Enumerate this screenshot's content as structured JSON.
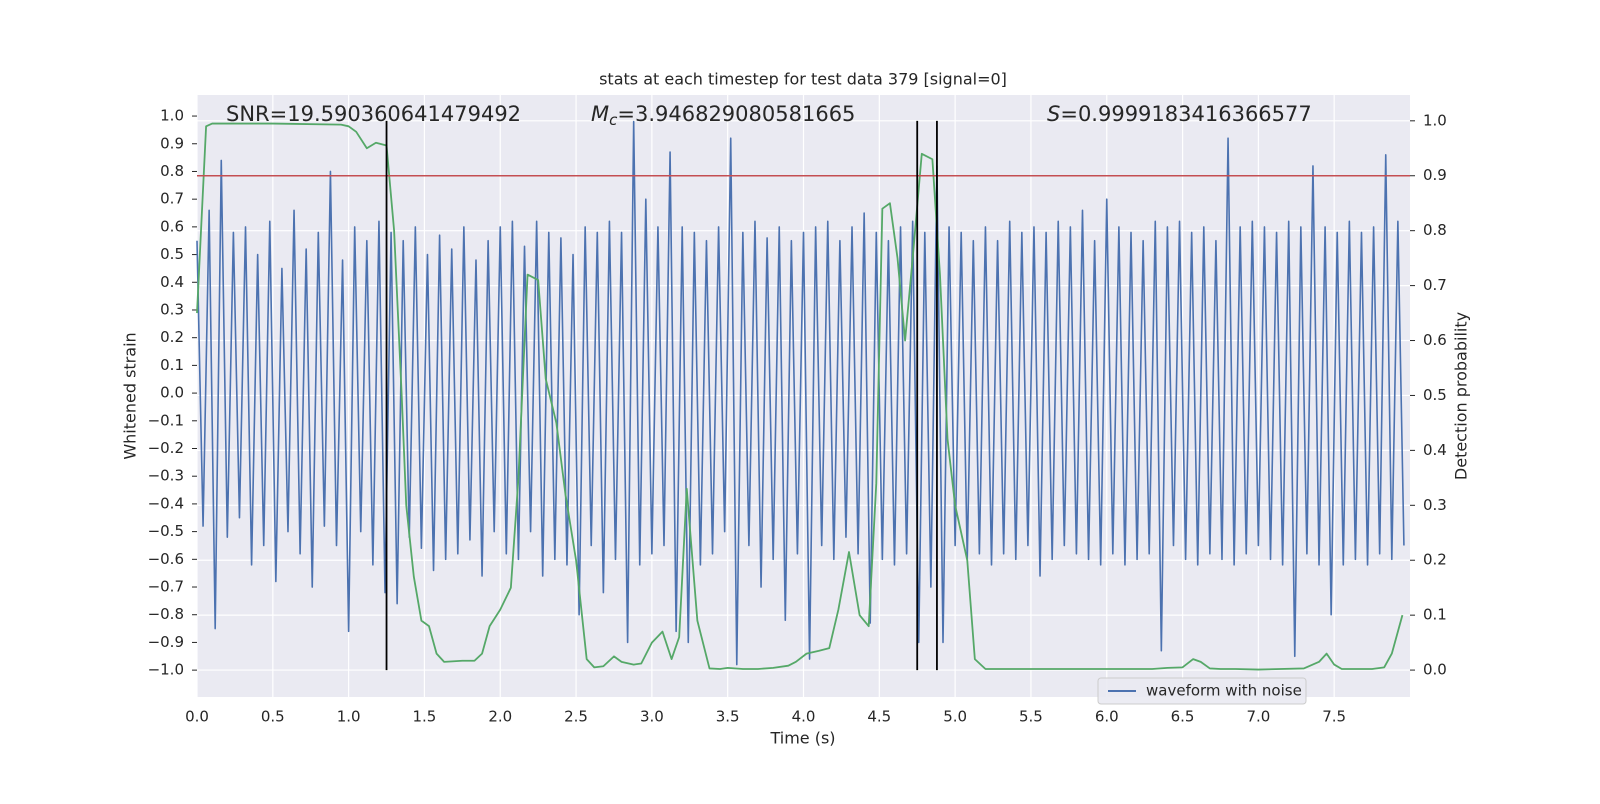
{
  "chart_data": {
    "type": "line",
    "title": "stats at each timestep for test data 379 [signal=0]",
    "xlabel": "Time (s)",
    "ylabel": "Whitened strain",
    "y2label": "Detection probability",
    "annotations": [
      {
        "text": "SNR=19.590360641479492"
      },
      {
        "symbol": "M",
        "subscript": "c",
        "text": "=3.946829080581665"
      },
      {
        "symbol": "S",
        "text": "=0.9999183416366577"
      }
    ],
    "xlim": [
      0,
      8
    ],
    "xticks": [
      {
        "value": 0,
        "label": "0.0"
      },
      0.5,
      {
        "value": 1,
        "label": "1.0"
      },
      1.5,
      {
        "value": 2,
        "label": "2.0"
      },
      2.5,
      {
        "value": 3,
        "label": "3.0"
      },
      3.5,
      {
        "value": 4,
        "label": "4.0"
      },
      4.5,
      {
        "value": 5,
        "label": "5.0"
      },
      5.5,
      {
        "value": 6,
        "label": "6.0"
      },
      6.5,
      {
        "value": 7,
        "label": "7.0"
      },
      7.5
    ],
    "ylim": [
      -1.097,
      1.076
    ],
    "yticks": [
      {
        "value": -1,
        "label": "−1.0"
      },
      {
        "value": -0.9,
        "label": "−0.9"
      },
      {
        "value": -0.8,
        "label": "−0.8"
      },
      {
        "value": -0.7,
        "label": "−0.7"
      },
      {
        "value": -0.6,
        "label": "−0.6"
      },
      {
        "value": -0.5,
        "label": "−0.5"
      },
      {
        "value": -0.4,
        "label": "−0.4"
      },
      {
        "value": -0.3,
        "label": "−0.3"
      },
      {
        "value": -0.2,
        "label": "−0.2"
      },
      {
        "value": -0.1,
        "label": "−0.1"
      },
      {
        "value": 0,
        "label": "0.0"
      },
      0.1,
      0.2,
      0.3,
      0.4,
      0.5,
      0.6,
      0.7,
      0.8,
      0.9,
      {
        "value": 1,
        "label": "1.0"
      }
    ],
    "y2lim": [
      -0.049,
      1.047
    ],
    "y2ticks": [
      {
        "value": 0,
        "label": "0.0"
      },
      0.1,
      0.2,
      0.3,
      0.4,
      0.5,
      0.6,
      0.7,
      0.8,
      0.9,
      {
        "value": 1,
        "label": "1.0"
      }
    ],
    "grid": true,
    "background": "#eaeaf2",
    "legend": "lower right",
    "series": [
      {
        "name": "waveform with noise",
        "color": "#4c72b0",
        "x": [
          0,
          0.04,
          0.08,
          0.12,
          0.16,
          0.2,
          0.24,
          0.28,
          0.32,
          0.36,
          0.4,
          0.44,
          0.48,
          0.52,
          0.56,
          0.6,
          0.64,
          0.68,
          0.72,
          0.76,
          0.8,
          0.84,
          0.88,
          0.92,
          0.96,
          1,
          1.04,
          1.08,
          1.12,
          1.16,
          1.2,
          1.24,
          1.28,
          1.32,
          1.36,
          1.4,
          1.44,
          1.48,
          1.52,
          1.56,
          1.6,
          1.64,
          1.68,
          1.72,
          1.76,
          1.8,
          1.84,
          1.88,
          1.92,
          1.96,
          2,
          2.04,
          2.08,
          2.12,
          2.16,
          2.2,
          2.24,
          2.28,
          2.32,
          2.36,
          2.4,
          2.44,
          2.48,
          2.52,
          2.56,
          2.6,
          2.64,
          2.68,
          2.72,
          2.76,
          2.8,
          2.84,
          2.88,
          2.92,
          2.96,
          3,
          3.04,
          3.08,
          3.12,
          3.16,
          3.2,
          3.24,
          3.28,
          3.32,
          3.36,
          3.4,
          3.44,
          3.48,
          3.52,
          3.56,
          3.6,
          3.64,
          3.68,
          3.72,
          3.76,
          3.8,
          3.84,
          3.88,
          3.92,
          3.96,
          4,
          4.04,
          4.08,
          4.12,
          4.16,
          4.2,
          4.24,
          4.28,
          4.32,
          4.36,
          4.4,
          4.44,
          4.48,
          4.52,
          4.56,
          4.6,
          4.64,
          4.68,
          4.72,
          4.76,
          4.8,
          4.84,
          4.88,
          4.92,
          4.96,
          5,
          5.04,
          5.08,
          5.12,
          5.16,
          5.2,
          5.24,
          5.28,
          5.32,
          5.36,
          5.4,
          5.44,
          5.48,
          5.52,
          5.56,
          5.6,
          5.64,
          5.68,
          5.72,
          5.76,
          5.8,
          5.84,
          5.88,
          5.92,
          5.96,
          6,
          6.04,
          6.08,
          6.12,
          6.16,
          6.2,
          6.24,
          6.28,
          6.32,
          6.36,
          6.4,
          6.44,
          6.48,
          6.52,
          6.56,
          6.6,
          6.64,
          6.68,
          6.72,
          6.76,
          6.8,
          6.84,
          6.88,
          6.92,
          6.96,
          7,
          7.04,
          7.08,
          7.12,
          7.16,
          7.2,
          7.24,
          7.28,
          7.32,
          7.36,
          7.4,
          7.44,
          7.48,
          7.52,
          7.56,
          7.6,
          7.64,
          7.68,
          7.72,
          7.76,
          7.8,
          7.84,
          7.88,
          7.92,
          7.96
        ],
        "values": [
          0.55,
          -0.48,
          0.66,
          -0.85,
          0.84,
          -0.52,
          0.58,
          -0.45,
          0.6,
          -0.62,
          0.5,
          -0.55,
          0.62,
          -0.68,
          0.45,
          -0.5,
          0.66,
          -0.58,
          0.52,
          -0.7,
          0.58,
          -0.48,
          0.8,
          -0.55,
          0.48,
          -0.86,
          0.6,
          -0.5,
          0.55,
          -0.62,
          0.62,
          -0.72,
          0.58,
          -0.76,
          0.55,
          -0.52,
          0.6,
          -0.56,
          0.5,
          -0.64,
          0.57,
          -0.6,
          0.52,
          -0.58,
          0.6,
          -0.53,
          0.48,
          -0.66,
          0.55,
          -0.5,
          0.6,
          -0.58,
          0.62,
          -0.6,
          0.53,
          -0.5,
          0.62,
          -0.66,
          0.58,
          -0.6,
          0.56,
          -0.62,
          0.5,
          -0.8,
          0.6,
          -0.55,
          0.58,
          -0.72,
          0.62,
          -0.6,
          0.58,
          -0.9,
          0.98,
          -0.62,
          0.7,
          -0.58,
          0.6,
          -0.55,
          0.87,
          -0.86,
          0.6,
          -0.9,
          0.58,
          -0.62,
          0.55,
          -0.58,
          0.6,
          -0.5,
          0.92,
          -0.98,
          0.58,
          -0.55,
          0.62,
          -0.7,
          0.56,
          -0.6,
          0.6,
          -0.82,
          0.55,
          -0.58,
          0.58,
          -0.96,
          0.6,
          -0.55,
          0.62,
          -0.6,
          0.55,
          -0.52,
          0.6,
          -0.58,
          0.65,
          -0.83,
          0.58,
          -0.6,
          0.55,
          -0.62,
          0.6,
          -0.58,
          0.62,
          -0.9,
          0.58,
          -0.7,
          0.82,
          -0.9,
          0.6,
          -0.55,
          0.58,
          -0.6,
          0.55,
          -0.58,
          0.6,
          -0.62,
          0.55,
          -0.58,
          0.62,
          -0.6,
          0.58,
          -0.55,
          0.6,
          -0.66,
          0.58,
          -0.6,
          0.62,
          -0.55,
          0.6,
          -0.58,
          0.66,
          -0.6,
          0.55,
          -0.62,
          0.7,
          -0.58,
          0.6,
          -0.62,
          0.58,
          -0.6,
          0.55,
          -0.58,
          0.62,
          -0.93,
          0.6,
          -0.55,
          0.62,
          -0.6,
          0.58,
          -0.62,
          0.6,
          -0.58,
          0.55,
          -0.6,
          0.92,
          -0.62,
          0.6,
          -0.58,
          0.62,
          -0.55,
          0.6,
          -0.6,
          0.58,
          -0.62,
          0.62,
          -0.95,
          0.6,
          -0.58,
          0.82,
          -0.62,
          0.6,
          -0.8,
          0.58,
          -0.62,
          0.62,
          -0.6,
          0.58,
          -0.62,
          0.6,
          -0.58,
          0.86,
          -0.6,
          0.62,
          -0.55
        ]
      },
      {
        "color": "#55a868",
        "axis": "y2",
        "x": [
          0,
          0.06,
          0.1,
          0.2,
          0.5,
          0.95,
          1,
          1.05,
          1.12,
          1.18,
          1.25,
          1.3,
          1.35,
          1.38,
          1.43,
          1.48,
          1.53,
          1.58,
          1.63,
          1.75,
          1.83,
          1.88,
          1.93,
          2,
          2.07,
          2.12,
          2.18,
          2.25,
          2.3,
          2.37,
          2.43,
          2.5,
          2.57,
          2.62,
          2.68,
          2.75,
          2.8,
          2.88,
          2.93,
          3,
          3.07,
          3.13,
          3.18,
          3.23,
          3.3,
          3.38,
          3.45,
          3.5,
          3.6,
          3.7,
          3.8,
          3.9,
          3.95,
          4.02,
          4.1,
          4.17,
          4.23,
          4.3,
          4.37,
          4.43,
          4.48,
          4.52,
          4.57,
          4.62,
          4.67,
          4.72,
          4.78,
          4.85,
          4.9,
          4.95,
          5,
          5.08,
          5.13,
          5.2,
          5.3,
          6,
          6.3,
          6.4,
          6.5,
          6.57,
          6.62,
          6.68,
          6.75,
          6.85,
          7,
          7.3,
          7.4,
          7.45,
          7.5,
          7.55,
          7.75,
          7.83,
          7.88,
          7.95
        ],
        "values": [
          0.65,
          0.99,
          0.995,
          0.995,
          0.995,
          0.993,
          0.99,
          0.98,
          0.95,
          0.96,
          0.955,
          0.8,
          0.5,
          0.3,
          0.17,
          0.09,
          0.08,
          0.03,
          0.015,
          0.017,
          0.017,
          0.03,
          0.08,
          0.11,
          0.15,
          0.35,
          0.72,
          0.71,
          0.53,
          0.45,
          0.32,
          0.2,
          0.02,
          0.005,
          0.007,
          0.025,
          0.015,
          0.01,
          0.012,
          0.05,
          0.07,
          0.02,
          0.06,
          0.33,
          0.09,
          0.003,
          0.002,
          0.004,
          0.002,
          0.002,
          0.004,
          0.008,
          0.015,
          0.03,
          0.035,
          0.04,
          0.11,
          0.215,
          0.1,
          0.08,
          0.34,
          0.84,
          0.85,
          0.75,
          0.6,
          0.75,
          0.94,
          0.93,
          0.72,
          0.42,
          0.3,
          0.2,
          0.02,
          0.002,
          0.002,
          0.002,
          0.002,
          0.004,
          0.005,
          0.02,
          0.015,
          0.003,
          0.002,
          0.002,
          0.001,
          0.003,
          0.015,
          0.03,
          0.01,
          0.002,
          0.002,
          0.005,
          0.03,
          0.1
        ]
      }
    ],
    "threshold": {
      "value": 0.9,
      "axis": "y2",
      "color": "#c44e52"
    },
    "vlines": {
      "x": [
        1.25,
        4.75,
        4.88
      ],
      "span": [
        0,
        1
      ],
      "axis": "y2",
      "color": "#000000"
    }
  }
}
